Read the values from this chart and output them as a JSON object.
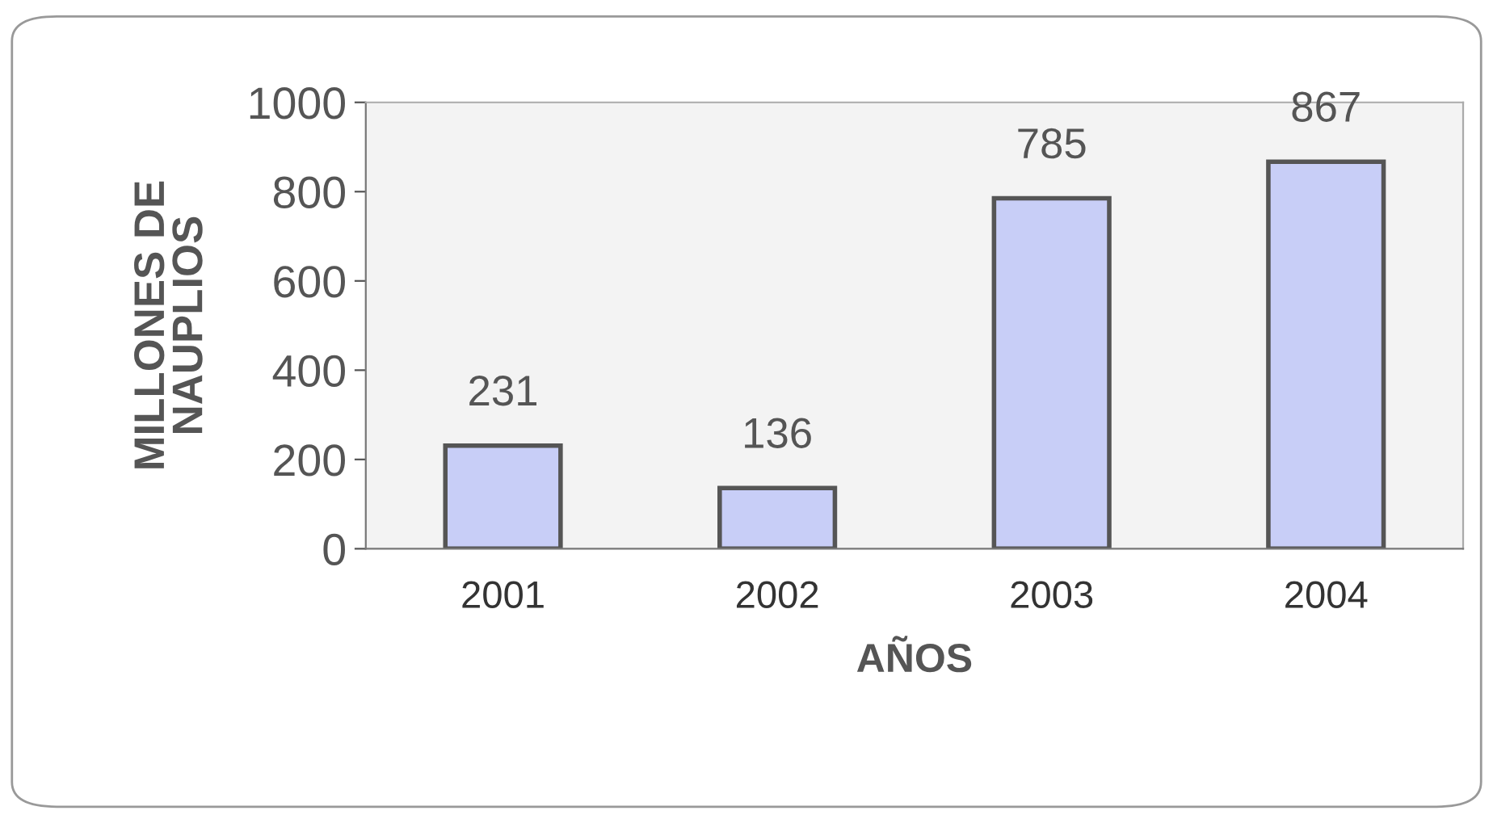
{
  "chart_data": {
    "type": "bar",
    "xlabel": "AÑOS",
    "ylabel": "MILLONES DE\nNAUPLIOS",
    "categories": [
      "2001",
      "2002",
      "2003",
      "2004"
    ],
    "values": [
      231,
      136,
      785,
      867
    ],
    "color": "#c8cef7",
    "ylim": [
      0,
      1000
    ],
    "yticks": [
      0,
      200,
      400,
      600,
      800,
      1000
    ],
    "data_labels": true,
    "grid": false
  }
}
